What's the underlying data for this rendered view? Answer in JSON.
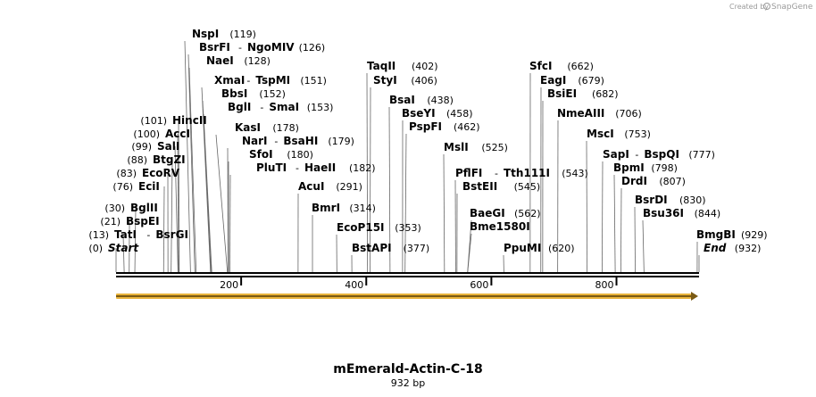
{
  "credit": {
    "prefix": "Created by",
    "brand": "SnapGene"
  },
  "sequence": {
    "name": "mEmerald-Actin-C-18",
    "length_label": "932 bp",
    "length": 932
  },
  "ruler": {
    "ticks": [
      200,
      400,
      600,
      800
    ]
  },
  "feature": {
    "color": "#f2c14e",
    "start": 0,
    "end": 932
  },
  "labels": [
    {
      "type": "L",
      "pos": "(0)",
      "name": "Start",
      "site": 0,
      "italic": true
    },
    {
      "type": "L",
      "pos": "(13)",
      "name": "TatI",
      "name2": "BsrGI",
      "site": 13
    },
    {
      "type": "L",
      "pos": "(21)",
      "name": "BspEI",
      "site": 21
    },
    {
      "type": "L",
      "pos": "(30)",
      "name": "BglII",
      "site": 30
    },
    {
      "type": "L",
      "pos": "(76)",
      "name": "EciI",
      "site": 76
    },
    {
      "type": "L",
      "pos": "(83)",
      "name": "EcoRV",
      "site": 83
    },
    {
      "type": "L",
      "pos": "(88)",
      "name": "BtgZI",
      "site": 88
    },
    {
      "type": "L",
      "pos": "(99)",
      "name": "SalI",
      "site": 99
    },
    {
      "type": "L",
      "pos": "(100)",
      "name": "AccI",
      "site": 100
    },
    {
      "type": "L",
      "pos": "(101)",
      "name": "HincII",
      "site": 101
    },
    {
      "type": "R",
      "name": "NspI",
      "pos": "(119)",
      "site": 119
    },
    {
      "type": "R",
      "name": "BsrFI",
      "name2": "NgoMIV",
      "pos": "(126)",
      "site": 126
    },
    {
      "type": "R",
      "name": "NaeI",
      "pos": "(128)",
      "site": 128
    },
    {
      "type": "R",
      "name": "XmaI",
      "name2": "TspMI",
      "pos": "(151)",
      "site": 151
    },
    {
      "type": "R",
      "name": "BbsI",
      "pos": "(152)",
      "site": 152
    },
    {
      "type": "R",
      "name": "BglI",
      "name2": "SmaI",
      "pos": "(153)",
      "site": 153
    },
    {
      "type": "R",
      "name": "KasI",
      "pos": "(178)",
      "site": 178
    },
    {
      "type": "R",
      "name": "NarI",
      "name2": "BsaHI",
      "pos": "(179)",
      "site": 179
    },
    {
      "type": "R",
      "name": "SfoI",
      "pos": "(180)",
      "site": 180
    },
    {
      "type": "R",
      "name": "PluTI",
      "name2": "HaeII",
      "pos": "(182)",
      "site": 182
    },
    {
      "type": "R",
      "name": "AcuI",
      "pos": "(291)",
      "site": 291
    },
    {
      "type": "R",
      "name": "BmrI",
      "pos": "(314)",
      "site": 314
    },
    {
      "type": "R",
      "name": "EcoP15I",
      "pos": "(353)",
      "site": 353
    },
    {
      "type": "R",
      "name": "BstAPI",
      "pos": "(377)",
      "site": 377
    },
    {
      "type": "R",
      "name": "TaqII",
      "pos": "(402)",
      "site": 402
    },
    {
      "type": "R",
      "name": "StyI",
      "pos": "(406)",
      "site": 406
    },
    {
      "type": "R",
      "name": "BsaI",
      "pos": "(438)",
      "site": 438
    },
    {
      "type": "R",
      "name": "BseYI",
      "pos": "(458)",
      "site": 458
    },
    {
      "type": "R",
      "name": "PspFI",
      "pos": "(462)",
      "site": 462
    },
    {
      "type": "R",
      "name": "MslI",
      "pos": "(525)",
      "site": 525
    },
    {
      "type": "R",
      "name": "PflFI",
      "name2": "Tth111I",
      "pos": "(543)",
      "site": 543
    },
    {
      "type": "R",
      "name": "BstEII",
      "pos": "(545)",
      "site": 545
    },
    {
      "type": "R",
      "name": "BaeGI",
      "pos": "(562)",
      "site": 562
    },
    {
      "type": "R",
      "name": "Bme1580I",
      "site": 562
    },
    {
      "type": "R",
      "name": "PpuMI",
      "pos": "(620)",
      "site": 620
    },
    {
      "type": "R",
      "name": "SfcI",
      "pos": "(662)",
      "site": 662
    },
    {
      "type": "R",
      "name": "EagI",
      "pos": "(679)",
      "site": 679
    },
    {
      "type": "R",
      "name": "BsiEI",
      "pos": "(682)",
      "site": 682
    },
    {
      "type": "R",
      "name": "NmeAIII",
      "pos": "(706)",
      "site": 706
    },
    {
      "type": "R",
      "name": "MscI",
      "pos": "(753)",
      "site": 753
    },
    {
      "type": "R",
      "name": "SapI",
      "name2": "BspQI",
      "pos": "(777)",
      "site": 777
    },
    {
      "type": "R",
      "name": "BpmI",
      "pos": "(798)",
      "site": 798
    },
    {
      "type": "R",
      "name": "DrdI",
      "pos": "(807)",
      "site": 807
    },
    {
      "type": "R",
      "name": "BsrDI",
      "pos": "(830)",
      "site": 830
    },
    {
      "type": "R",
      "name": "Bsu36I",
      "pos": "(844)",
      "site": 844
    },
    {
      "type": "R",
      "name": "BmgBI",
      "pos": "(929)",
      "site": 929
    },
    {
      "type": "R",
      "name": "End",
      "pos": "(932)",
      "site": 932,
      "italic": true
    }
  ]
}
